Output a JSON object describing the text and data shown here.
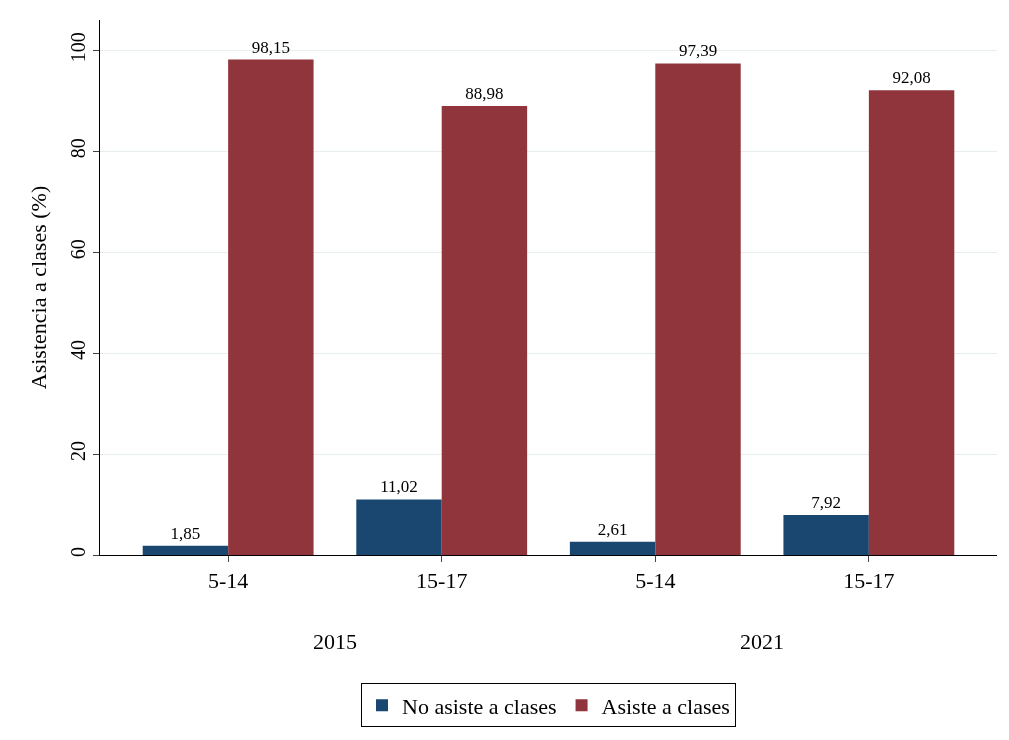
{
  "chart_data": {
    "type": "bar",
    "ylabel": "Asistencia a clases (%)",
    "categories": [
      "5-14",
      "15-17",
      "5-14",
      "15-17"
    ],
    "annotations": [
      "2015",
      "2021"
    ],
    "series": [
      {
        "name": "No asiste a clases",
        "color": "#1a476f",
        "values": [
          1.85,
          11.02,
          2.61,
          7.92
        ],
        "value_labels": [
          "1,85",
          "11,02",
          "2,61",
          "7,92"
        ]
      },
      {
        "name": "Asiste a clases",
        "color": "#90353b",
        "values": [
          98.15,
          88.98,
          97.39,
          92.08
        ],
        "value_labels": [
          "98,15",
          "88,98",
          "97,39",
          "92,08"
        ]
      }
    ],
    "ylim": [
      0,
      106
    ],
    "yticks": [
      0,
      20,
      40,
      60,
      80,
      100
    ],
    "grid": "y",
    "legend": "bottom"
  }
}
